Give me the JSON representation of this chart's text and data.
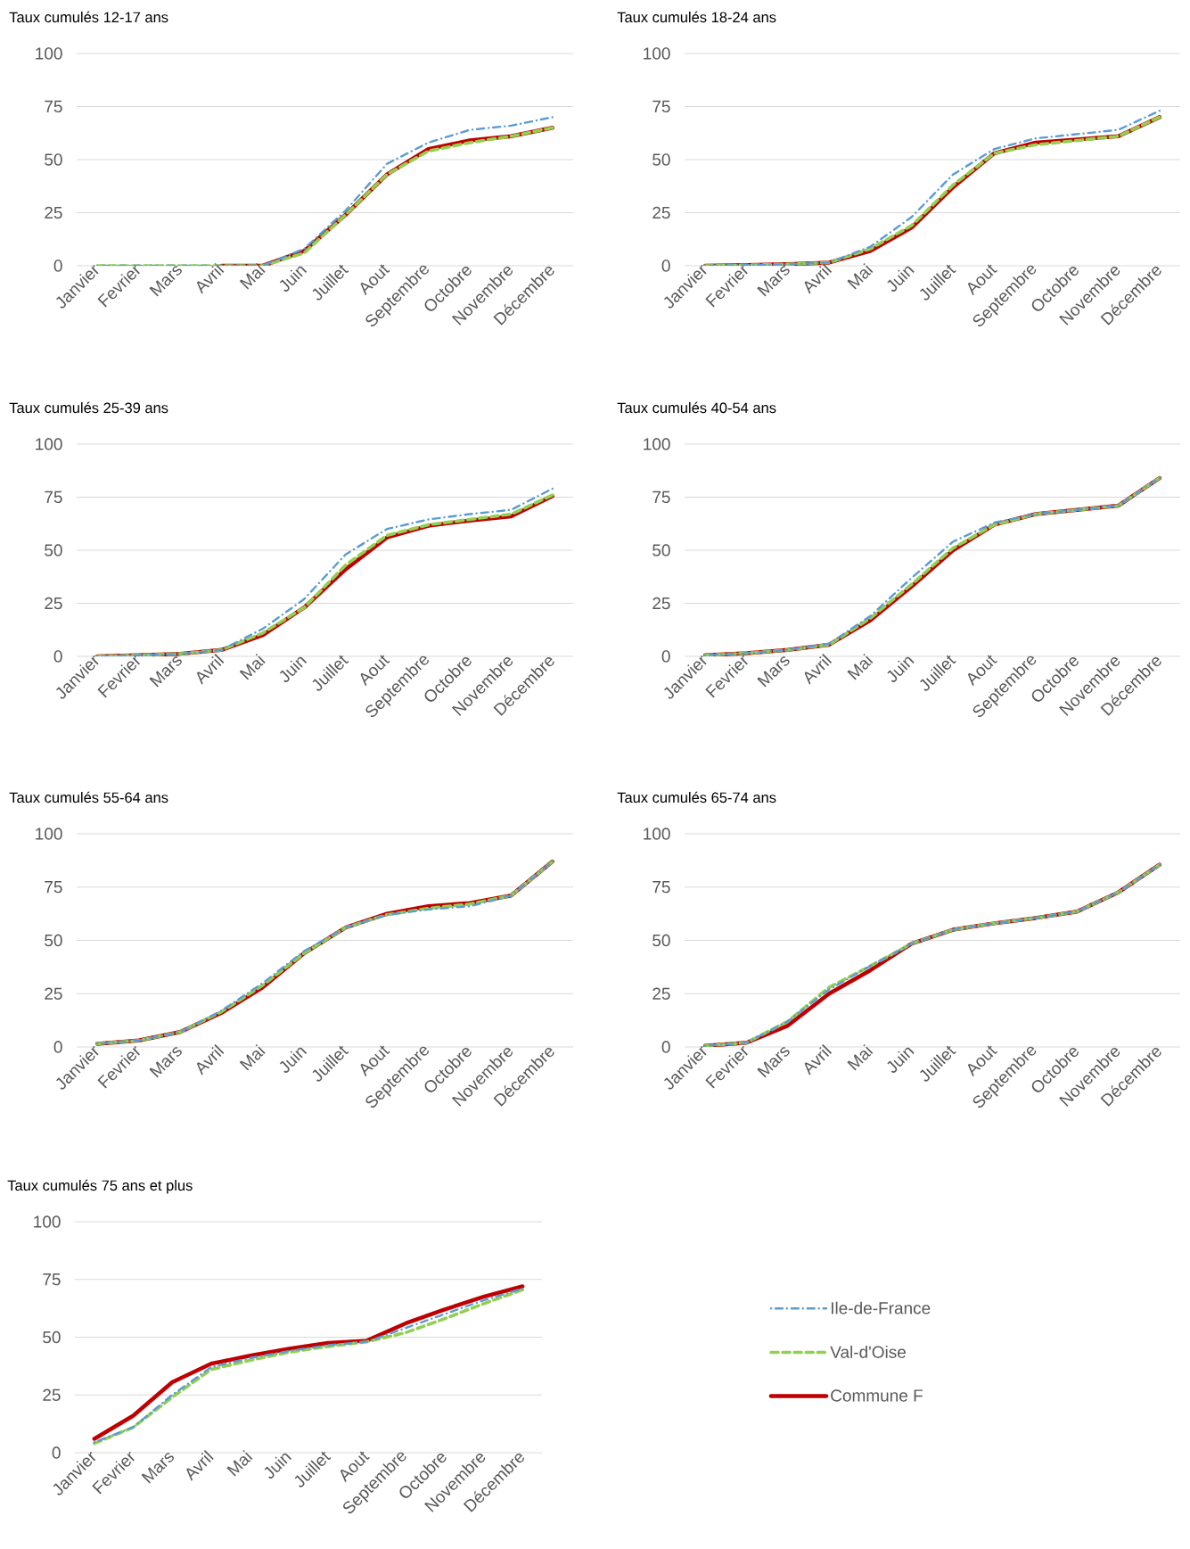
{
  "chart_data": [
    {
      "type": "line",
      "title": "Taux cumulés 12-17 ans",
      "categories": [
        "Janvier",
        "Fevrier",
        "Mars",
        "Avril",
        "Mai",
        "Juin",
        "Juillet",
        "Aout",
        "Septembre",
        "Octobre",
        "Novembre",
        "Décembre"
      ],
      "ylim": [
        0,
        100
      ],
      "yticks": [
        0,
        25,
        50,
        75,
        100
      ],
      "grid": "y",
      "series": [
        {
          "color": "#5b9bd5",
          "line_style": "dashdot",
          "values": [
            0,
            0,
            0,
            0,
            0,
            8,
            26,
            48,
            58,
            64,
            66,
            70
          ]
        },
        {
          "color": "#92d050",
          "line_style": "dashed",
          "values": [
            0,
            0,
            0,
            0,
            0,
            6,
            24,
            43,
            54,
            58,
            61,
            65
          ]
        },
        {
          "color": "#c00000",
          "line_style": "solid",
          "values": [
            null,
            null,
            null,
            0,
            0,
            7,
            24,
            43,
            55,
            59,
            61,
            65
          ]
        }
      ]
    },
    {
      "type": "line",
      "title": "Taux cumulés 18-24 ans",
      "categories": [
        "Janvier",
        "Fevrier",
        "Mars",
        "Avril",
        "Mai",
        "Juin",
        "Juillet",
        "Aout",
        "Septembre",
        "Octobre",
        "Novembre",
        "Décembre"
      ],
      "ylim": [
        0,
        100
      ],
      "yticks": [
        0,
        25,
        50,
        75,
        100
      ],
      "grid": "y",
      "series": [
        {
          "color": "#5b9bd5",
          "line_style": "dashdot",
          "values": [
            0,
            0.3,
            0.7,
            1.5,
            9,
            23,
            43,
            55,
            60,
            62,
            64,
            73
          ]
        },
        {
          "color": "#92d050",
          "line_style": "dashed",
          "values": [
            0,
            0.3,
            0.7,
            1.5,
            8,
            19,
            38,
            53,
            57,
            59,
            61,
            70
          ]
        },
        {
          "color": "#c00000",
          "line_style": "solid",
          "values": [
            0,
            0.3,
            0.7,
            1.5,
            7,
            18,
            37,
            53,
            58,
            59.5,
            61,
            70
          ]
        }
      ]
    },
    {
      "type": "line",
      "title": "Taux cumulés 25-39 ans",
      "categories": [
        "Janvier",
        "Fevrier",
        "Mars",
        "Avril",
        "Mai",
        "Juin",
        "Juillet",
        "Aout",
        "Septembre",
        "Octobre",
        "Novembre",
        "Décembre"
      ],
      "ylim": [
        0,
        100
      ],
      "yticks": [
        0,
        25,
        50,
        75,
        100
      ],
      "grid": "y",
      "series": [
        {
          "color": "#5b9bd5",
          "line_style": "dashdot",
          "values": [
            0,
            0.5,
            1.2,
            3,
            13,
            27,
            48,
            60,
            64.5,
            67,
            69,
            79
          ]
        },
        {
          "color": "#92d050",
          "line_style": "dashed",
          "values": [
            0,
            0.5,
            1.2,
            3,
            11,
            23,
            43,
            57,
            62,
            64.5,
            67,
            76
          ]
        },
        {
          "color": "#c00000",
          "line_style": "solid",
          "values": [
            0,
            0.5,
            1.2,
            3,
            10,
            23,
            41,
            56,
            61.5,
            64,
            66,
            75.5
          ]
        }
      ]
    },
    {
      "type": "line",
      "title": "Taux cumulés 40-54 ans",
      "categories": [
        "Janvier",
        "Fevrier",
        "Mars",
        "Avril",
        "Mai",
        "Juin",
        "Juillet",
        "Aout",
        "Septembre",
        "Octobre",
        "Novembre",
        "Décembre"
      ],
      "ylim": [
        0,
        100
      ],
      "yticks": [
        0,
        25,
        50,
        75,
        100
      ],
      "grid": "y",
      "series": [
        {
          "color": "#5b9bd5",
          "line_style": "dashdot",
          "values": [
            0.5,
            1.5,
            3,
            6,
            19,
            37,
            54,
            63,
            67,
            69,
            71,
            84
          ]
        },
        {
          "color": "#92d050",
          "line_style": "dashed",
          "values": [
            0.5,
            1.5,
            3,
            5.5,
            18,
            34,
            51,
            62,
            67,
            69,
            71,
            84
          ]
        },
        {
          "color": "#c00000",
          "line_style": "solid",
          "values": [
            0.5,
            1.5,
            3,
            5.5,
            17,
            33,
            50,
            62,
            67,
            69,
            71,
            84
          ]
        }
      ]
    },
    {
      "type": "line",
      "title": "Taux cumulés 55-64 ans",
      "categories": [
        "Janvier",
        "Fevrier",
        "Mars",
        "Avril",
        "Mai",
        "Juin",
        "Juillet",
        "Aout",
        "Septembre",
        "Octobre",
        "Novembre",
        "Décembre"
      ],
      "ylim": [
        0,
        100
      ],
      "yticks": [
        0,
        25,
        50,
        75,
        100
      ],
      "grid": "y",
      "series": [
        {
          "color": "#5b9bd5",
          "line_style": "dashdot",
          "values": [
            1.5,
            3,
            7,
            17,
            30,
            45,
            56,
            62,
            64.5,
            66,
            71,
            87
          ]
        },
        {
          "color": "#92d050",
          "line_style": "dashed",
          "values": [
            1.5,
            3,
            7,
            16.5,
            29,
            44,
            56,
            62,
            65,
            67,
            71,
            87
          ]
        },
        {
          "color": "#c00000",
          "line_style": "solid",
          "values": [
            1.5,
            3,
            7,
            16,
            28,
            44,
            56,
            62.5,
            66,
            67.5,
            71,
            87
          ]
        }
      ]
    },
    {
      "type": "line",
      "title": "Taux cumulés 65-74 ans",
      "categories": [
        "Janvier",
        "Fevrier",
        "Mars",
        "Avril",
        "Mai",
        "Juin",
        "Juillet",
        "Aout",
        "Septembre",
        "Octobre",
        "Novembre",
        "Décembre"
      ],
      "ylim": [
        0,
        100
      ],
      "yticks": [
        0,
        25,
        50,
        75,
        100
      ],
      "grid": "y",
      "series": [
        {
          "color": "#5b9bd5",
          "line_style": "dashdot",
          "values": [
            0.5,
            2,
            12,
            27,
            38,
            48.5,
            55,
            58,
            60.5,
            63.5,
            72.5,
            85.5
          ]
        },
        {
          "color": "#92d050",
          "line_style": "dashed",
          "values": [
            0.5,
            2,
            12,
            28,
            38,
            48.5,
            55,
            58,
            60.5,
            63.5,
            72.5,
            85.5
          ]
        },
        {
          "color": "#c00000",
          "line_style": "solid",
          "values": [
            0.5,
            2,
            10,
            25,
            36,
            48.5,
            55,
            58,
            60.5,
            63.5,
            72.5,
            85.5
          ]
        }
      ]
    },
    {
      "type": "line",
      "title": "Taux cumulés 75 ans et plus",
      "categories": [
        "Janvier",
        "Fevrier",
        "Mars",
        "Avril",
        "Mai",
        "Juin",
        "Juillet",
        "Aout",
        "Septembre",
        "Octobre",
        "Novembre",
        "Décembre"
      ],
      "ylim": [
        0,
        100
      ],
      "yticks": [
        0,
        25,
        50,
        75,
        100
      ],
      "grid": "y",
      "legend": "right",
      "series": [
        {
          "name": "Ile-de-France",
          "color": "#5b9bd5",
          "line_style": "dashdot",
          "values": [
            4.5,
            11,
            25,
            37,
            41,
            44,
            46.5,
            48,
            54,
            60,
            66,
            71
          ]
        },
        {
          "name": "Val-d'Oise",
          "color": "#92d050",
          "line_style": "dashed",
          "values": [
            4,
            11,
            24,
            36,
            40,
            43.5,
            46,
            48,
            52,
            58,
            64.5,
            70.5
          ]
        },
        {
          "name": "Commune F",
          "color": "#c00000",
          "line_style": "solid",
          "values": [
            6,
            16,
            30.5,
            38.5,
            42,
            45,
            47.5,
            48.5,
            56,
            62,
            67.5,
            72
          ]
        }
      ]
    }
  ]
}
